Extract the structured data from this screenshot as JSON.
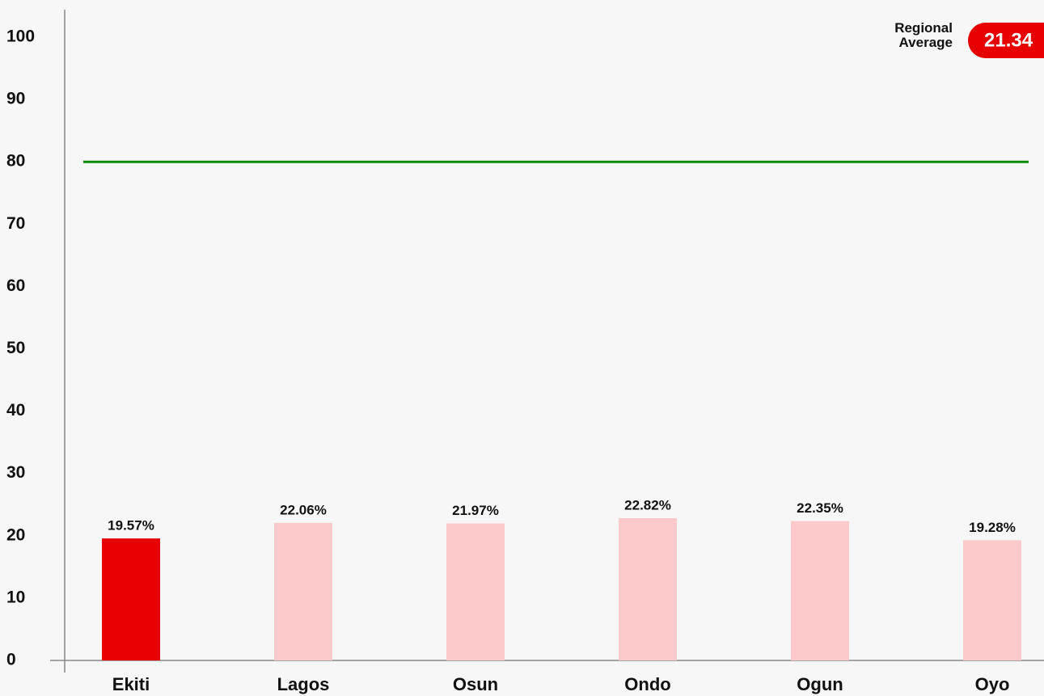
{
  "chart_data": {
    "type": "bar",
    "categories": [
      "Ekiti",
      "Lagos",
      "Osun",
      "Ondo",
      "Ogun",
      "Oyo"
    ],
    "values": [
      19.57,
      22.06,
      21.97,
      22.82,
      22.35,
      19.28
    ],
    "value_labels": [
      "19.57%",
      "22.06%",
      "21.97%",
      "22.82%",
      "22.35%",
      "19.28%"
    ],
    "colors": [
      "#e60000",
      "#fccaca",
      "#fccaca",
      "#fccaca",
      "#fccaca",
      "#fccaca"
    ],
    "ylim": [
      0,
      100
    ],
    "yticks": [
      0,
      10,
      20,
      30,
      40,
      50,
      60,
      70,
      80,
      90,
      100
    ],
    "grid": false,
    "reference_line": {
      "value": 80,
      "color": "#0a8a0a"
    },
    "regional_average": {
      "label": "Regional Average",
      "value": 21.34,
      "color": "#e60000"
    }
  }
}
